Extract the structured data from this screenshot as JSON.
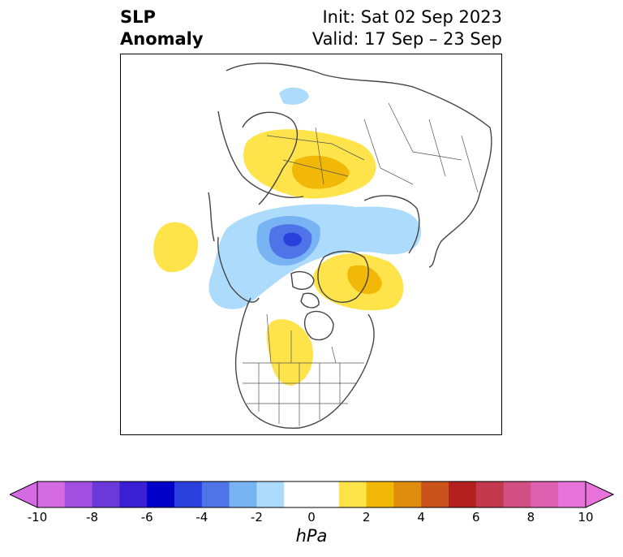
{
  "title": {
    "left_line1": "SLP",
    "left_line2": "Anomaly",
    "right_line1": "Init: Sat 02 Sep 2023",
    "right_line2": "Valid: 17 Sep – 23 Sep"
  },
  "colorbar": {
    "unit": "hPa",
    "ticks": [
      "-10",
      "-8",
      "-6",
      "-4",
      "-2",
      "0",
      "2",
      "4",
      "6",
      "8",
      "10"
    ],
    "bins": [
      {
        "low": -10,
        "high": -9,
        "color": "#d46be3"
      },
      {
        "low": -9,
        "high": -8,
        "color": "#a04fe0"
      },
      {
        "low": -8,
        "high": -7,
        "color": "#6b39d9"
      },
      {
        "low": -7,
        "high": -6,
        "color": "#3a1fd3"
      },
      {
        "low": -6,
        "high": -5,
        "color": "#0000c8"
      },
      {
        "low": -5,
        "high": -4,
        "color": "#2b3fdc"
      },
      {
        "low": -4,
        "high": -3,
        "color": "#4f74e8"
      },
      {
        "low": -3,
        "high": -2,
        "color": "#78b3f3"
      },
      {
        "low": -2,
        "high": -1,
        "color": "#addbfb"
      },
      {
        "low": -1,
        "high": 1,
        "color": "#ffffff"
      },
      {
        "low": 1,
        "high": 2,
        "color": "#fee44a"
      },
      {
        "low": 2,
        "high": 3,
        "color": "#f2b807"
      },
      {
        "low": 3,
        "high": 4,
        "color": "#e08c0c"
      },
      {
        "low": 4,
        "high": 5,
        "color": "#c9531b"
      },
      {
        "low": 5,
        "high": 6,
        "color": "#b42020"
      },
      {
        "low": 6,
        "high": 7,
        "color": "#c2384c"
      },
      {
        "low": 7,
        "high": 8,
        "color": "#d24f83"
      },
      {
        "low": 8,
        "high": 9,
        "color": "#dd60b1"
      },
      {
        "low": 9,
        "high": 10,
        "color": "#e873da"
      }
    ],
    "extend_low_color": "#d46be3",
    "extend_high_color": "#e873da"
  },
  "anomaly_features": [
    {
      "name": "positive-anomaly-scandinavia-russia",
      "value_hpa": 3
    },
    {
      "name": "negative-anomaly-arctic-ocean",
      "value_hpa": -6
    },
    {
      "name": "positive-anomaly-north-pacific",
      "value_hpa": 1.5
    },
    {
      "name": "positive-anomaly-greenland-canada",
      "value_hpa": 3
    },
    {
      "name": "positive-anomaly-central-north-america",
      "value_hpa": 1.5
    },
    {
      "name": "negative-anomaly-small-east-siberia",
      "value_hpa": -1.5
    }
  ]
}
